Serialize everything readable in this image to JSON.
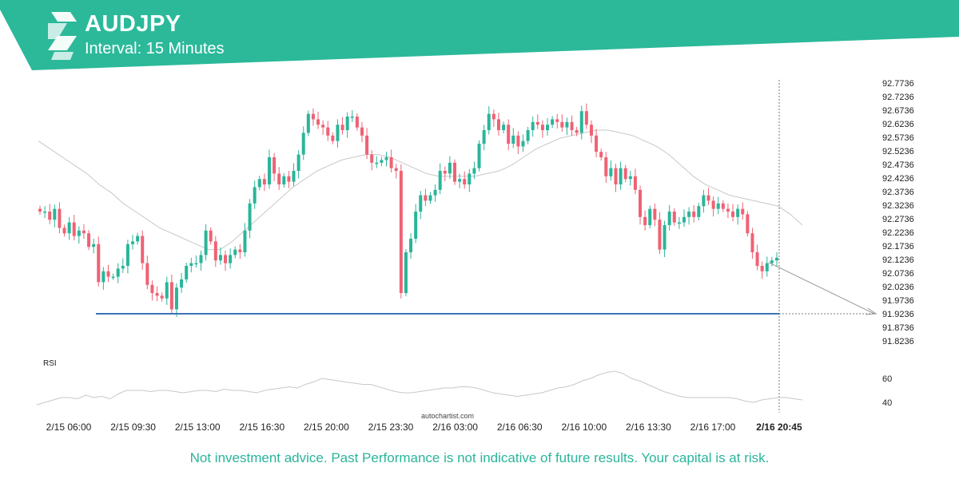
{
  "header": {
    "symbol": "AUDJPY",
    "interval": "Interval: 15 Minutes",
    "brand_color": "#2bb99a",
    "logo_icon": "autochartist-logo-icon"
  },
  "watermark": "autochartist.com",
  "disclaimer": "Not investment advice. Past Performance is not indicative of future results. Your capital is at risk.",
  "colors": {
    "up": "#2ab59a",
    "down": "#ef6274",
    "support_line": "#3b73b9",
    "moving_average": "#c8c8c8",
    "rsi_line": "#c8c8c8",
    "projection": "#999999",
    "axis_text": "#222222"
  },
  "chart_data": {
    "type": "candlestick",
    "symbol": "AUDJPY",
    "interval": "15 Minutes",
    "y_ticks": [
      "92.7736",
      "92.7236",
      "92.6736",
      "92.6236",
      "92.5736",
      "92.5236",
      "92.4736",
      "92.4236",
      "92.3736",
      "92.3236",
      "92.2736",
      "92.2236",
      "92.1736",
      "92.1236",
      "92.0736",
      "92.0236",
      "91.9736",
      "91.9236",
      "91.8736",
      "91.8236"
    ],
    "ylim": [
      91.8236,
      92.7736
    ],
    "x_ticks": [
      "2/15 06:00",
      "2/15 09:30",
      "2/15 13:00",
      "2/15 16:30",
      "2/15 20:00",
      "2/15 23:30",
      "2/16 03:00",
      "2/16 06:30",
      "2/16 10:00",
      "2/16 13:30",
      "2/16 17:00",
      "2/16 20:45"
    ],
    "highlighted_x_tick": "2/16 20:45",
    "support_level": 91.9236,
    "projection_end": 91.9236,
    "close_series": [
      92.3,
      92.3,
      92.27,
      92.31,
      92.24,
      92.22,
      92.26,
      92.21,
      92.23,
      92.22,
      92.17,
      92.18,
      92.04,
      92.08,
      92.06,
      92.06,
      92.09,
      92.1,
      92.18,
      92.19,
      92.21,
      92.11,
      92.03,
      92.0,
      91.99,
      91.98,
      92.04,
      91.94,
      92.02,
      92.05,
      92.1,
      92.11,
      92.11,
      92.14,
      92.23,
      92.19,
      92.12,
      92.14,
      92.11,
      92.14,
      92.16,
      92.15,
      92.23,
      92.33,
      92.39,
      92.42,
      92.4,
      92.5,
      92.44,
      92.4,
      92.43,
      92.41,
      92.45,
      92.51,
      92.59,
      92.66,
      92.64,
      92.62,
      92.61,
      92.58,
      92.56,
      92.62,
      92.6,
      92.65,
      92.65,
      92.61,
      92.58,
      92.51,
      92.48,
      92.48,
      92.49,
      92.5,
      92.46,
      92.45,
      92.0,
      92.15,
      92.2,
      92.3,
      92.36,
      92.34,
      92.36,
      92.38,
      92.45,
      92.44,
      92.48,
      92.41,
      92.42,
      92.4,
      92.44,
      92.46,
      92.55,
      92.6,
      92.66,
      92.64,
      92.6,
      92.62,
      92.55,
      92.58,
      92.54,
      92.56,
      92.6,
      92.63,
      92.62,
      92.6,
      92.62,
      92.64,
      92.63,
      92.61,
      92.63,
      92.6,
      92.59,
      92.67,
      92.62,
      92.58,
      92.52,
      92.5,
      92.43,
      92.46,
      92.4,
      92.46,
      92.42,
      92.43,
      92.38,
      92.28,
      92.25,
      92.31,
      92.27,
      92.16,
      92.25,
      92.3,
      92.26,
      92.26,
      92.28,
      92.3,
      92.28,
      92.32,
      92.36,
      92.34,
      92.31,
      92.33,
      92.31,
      92.3,
      92.28,
      92.31,
      92.29,
      92.22,
      92.15,
      92.1,
      92.08,
      92.11,
      92.12,
      92.13
    ],
    "ma_series": [
      92.56,
      92.53,
      92.5,
      92.47,
      92.44,
      92.4,
      92.37,
      92.33,
      92.3,
      92.27,
      92.24,
      92.22,
      92.2,
      92.18,
      92.16,
      92.16,
      92.19,
      92.23,
      92.27,
      92.31,
      92.35,
      92.39,
      92.42,
      92.45,
      92.47,
      92.49,
      92.5,
      92.51,
      92.51,
      92.5,
      92.48,
      92.46,
      92.44,
      92.43,
      92.43,
      92.43,
      92.43,
      92.44,
      92.45,
      92.47,
      92.5,
      92.53,
      92.55,
      92.57,
      92.58,
      92.59,
      92.6,
      92.6,
      92.59,
      92.58,
      92.56,
      92.54,
      92.51,
      92.47,
      92.43,
      92.4,
      92.38,
      92.36,
      92.35,
      92.34,
      92.33,
      92.32,
      92.29,
      92.25
    ],
    "rsi_label": "RSI",
    "rsi_ticks": [
      60,
      40
    ],
    "rsi_range": [
      35,
      70
    ],
    "rsi_series": [
      38,
      40,
      42,
      44,
      44,
      43,
      46,
      44,
      45,
      43,
      47,
      50,
      50,
      50,
      49,
      50,
      50,
      49,
      48,
      49,
      50,
      50,
      49,
      51,
      50,
      50,
      49,
      48,
      50,
      51,
      52,
      53,
      52,
      55,
      57,
      60,
      59,
      58,
      57,
      56,
      55,
      55,
      53,
      51,
      49,
      48,
      48,
      49,
      50,
      51,
      52,
      52,
      53,
      53,
      52,
      50,
      48,
      47,
      46,
      45,
      46,
      47,
      48,
      50,
      52,
      53,
      55,
      58,
      60,
      63,
      65,
      66,
      64,
      60,
      58,
      55,
      52,
      49,
      47,
      45,
      44,
      44,
      44,
      44,
      44,
      44,
      43,
      41,
      40,
      42,
      43,
      44,
      44,
      43,
      42
    ]
  }
}
